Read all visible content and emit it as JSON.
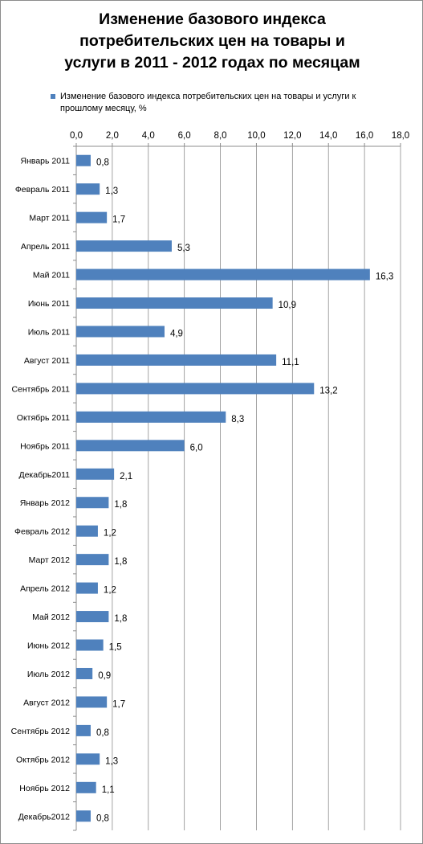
{
  "chart_data": {
    "type": "bar",
    "orientation": "horizontal",
    "title": "Изменение базового индекса потребительских цен на товары и услуги в 2011 - 2012 годах по месяцам",
    "title_lines": [
      "Изменение базового индекса",
      "потребительских цен на товары и",
      "услуги в 2011 - 2012 годах по месяцам"
    ],
    "legend_position": "top",
    "grid": true,
    "xlim": [
      0,
      18
    ],
    "x_ticks": [
      "0,0",
      "2,0",
      "4,0",
      "6,0",
      "8,0",
      "10,0",
      "12,0",
      "14,0",
      "16,0",
      "18,0"
    ],
    "categories": [
      "Январь 2011",
      "Февраль 2011",
      "Март 2011",
      "Апрель 2011",
      "Май 2011",
      "Июнь 2011",
      "Июль 2011",
      "Август 2011",
      "Сентябрь 2011",
      "Октябрь 2011",
      "Ноябрь 2011",
      "Декабрь2011",
      "Январь 2012",
      "Февраль 2012",
      "Март 2012",
      "Апрель 2012",
      "Май 2012",
      "Июнь 2012",
      "Июль 2012",
      "Август 2012",
      "Сентябрь 2012",
      "Октябрь 2012",
      "Ноябрь 2012",
      "Декабрь2012"
    ],
    "series": [
      {
        "name": "Изменение  базового индекса потребительских  цен на товары и услуги к прошлому месяцу, %",
        "color": "#4f81bd",
        "values": [
          0.8,
          1.3,
          1.7,
          5.3,
          16.3,
          10.9,
          4.9,
          11.1,
          13.2,
          8.3,
          6.0,
          2.1,
          1.8,
          1.2,
          1.8,
          1.2,
          1.8,
          1.5,
          0.9,
          1.7,
          0.8,
          1.3,
          1.1,
          0.8
        ],
        "labels": [
          "0,8",
          "1,3",
          "1,7",
          "5,3",
          "16,3",
          "10,9",
          "4,9",
          "11,1",
          "13,2",
          "8,3",
          "6,0",
          "2,1",
          "1,8",
          "1,2",
          "1,8",
          "1,2",
          "1,8",
          "1,5",
          "0,9",
          "1,7",
          "0,8",
          "1,3",
          "1,1",
          "0,8"
        ]
      }
    ]
  }
}
